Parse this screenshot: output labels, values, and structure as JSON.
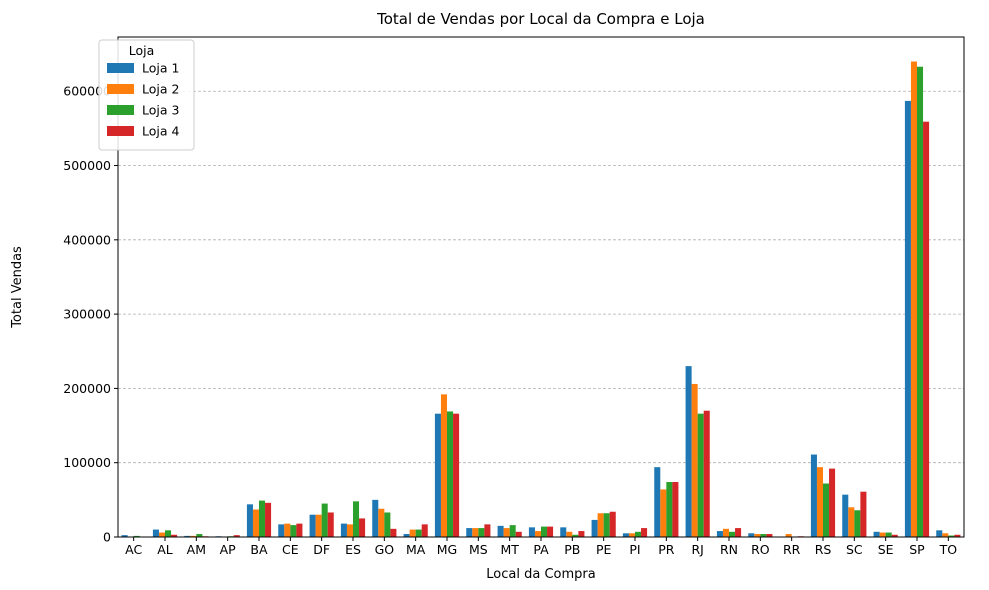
{
  "chart_data": {
    "type": "bar",
    "title": "Total de Vendas por Local da Compra e Loja",
    "xlabel": "Local da Compra",
    "ylabel": "Total Vendas",
    "ylim": [
      0,
      673000
    ],
    "yticks": [
      0,
      100000,
      200000,
      300000,
      400000,
      500000,
      600000
    ],
    "ytick_labels": [
      "0",
      "100000",
      "200000",
      "300000",
      "400000",
      "500000",
      "600000"
    ],
    "grid": "y-dashed",
    "legend": {
      "title": "Loja",
      "position": "top-left"
    },
    "categories": [
      "AC",
      "AL",
      "AM",
      "AP",
      "BA",
      "CE",
      "DF",
      "ES",
      "GO",
      "MA",
      "MG",
      "MS",
      "MT",
      "PA",
      "PB",
      "PE",
      "PI",
      "PR",
      "RJ",
      "RN",
      "RO",
      "RR",
      "RS",
      "SC",
      "SE",
      "SP",
      "TO"
    ],
    "series": [
      {
        "name": "Loja 1",
        "color": "#1f77b4",
        "values": [
          2500,
          10000,
          1500,
          1000,
          44000,
          17000,
          30000,
          18000,
          50000,
          4000,
          166000,
          12000,
          15000,
          13000,
          13000,
          23000,
          5000,
          94000,
          230000,
          8000,
          5000,
          500,
          111000,
          57000,
          7000,
          587000,
          9000
        ]
      },
      {
        "name": "Loja 2",
        "color": "#ff7f0e",
        "values": [
          0,
          6000,
          1500,
          0,
          37000,
          18000,
          30000,
          17000,
          38000,
          10000,
          192000,
          12000,
          12000,
          8000,
          7000,
          32000,
          5000,
          64000,
          206000,
          11000,
          4000,
          4000,
          94000,
          40000,
          6000,
          640000,
          5000
        ]
      },
      {
        "name": "Loja 3",
        "color": "#2ca02c",
        "values": [
          1500,
          9000,
          4000,
          1000,
          49000,
          16000,
          45000,
          48000,
          33000,
          10000,
          169000,
          12000,
          16000,
          14000,
          3000,
          32000,
          7000,
          74000,
          166000,
          7000,
          4000,
          0,
          72000,
          36000,
          6000,
          633000,
          2000
        ]
      },
      {
        "name": "Loja 4",
        "color": "#d62728",
        "values": [
          0,
          3000,
          1000,
          2500,
          46000,
          18000,
          33000,
          25000,
          11000,
          17000,
          166000,
          17000,
          7000,
          14000,
          8000,
          34000,
          12000,
          74000,
          170000,
          12000,
          4000,
          1000,
          92000,
          61000,
          3000,
          559000,
          3000
        ]
      }
    ]
  }
}
